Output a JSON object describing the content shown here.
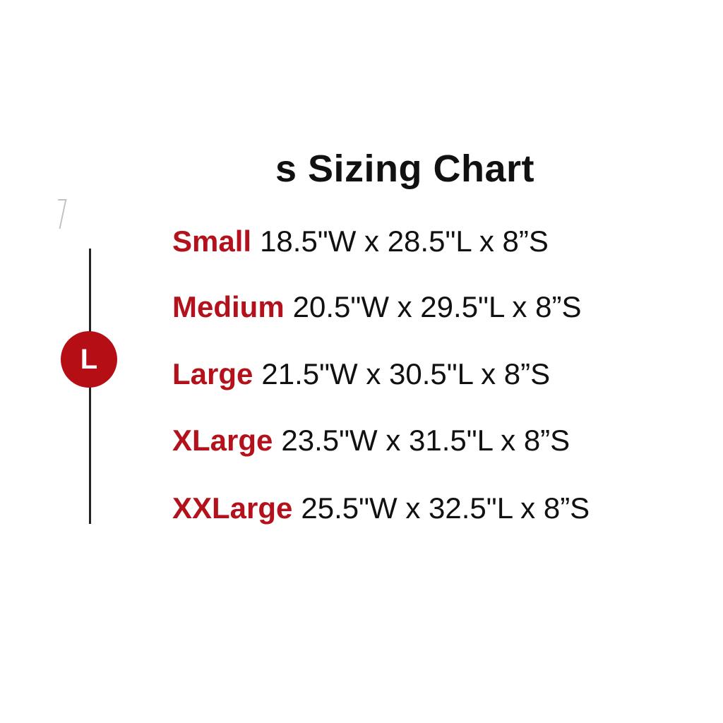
{
  "title": "s Sizing Chart",
  "badge": "L",
  "accent_color": "#b3121c",
  "sizes": [
    {
      "name": "Small",
      "dims": "18.5\"W x 28.5\"L x 8”S"
    },
    {
      "name": "Medium",
      "dims": "20.5\"W x 29.5\"L x 8”S"
    },
    {
      "name": "Large",
      "dims": "21.5\"W x 30.5\"L x 8”S"
    },
    {
      "name": "XLarge",
      "dims": "23.5\"W x 31.5\"L x 8”S"
    },
    {
      "name": "XXLarge",
      "dims": "25.5\"W x 32.5\"L x 8”S"
    }
  ]
}
